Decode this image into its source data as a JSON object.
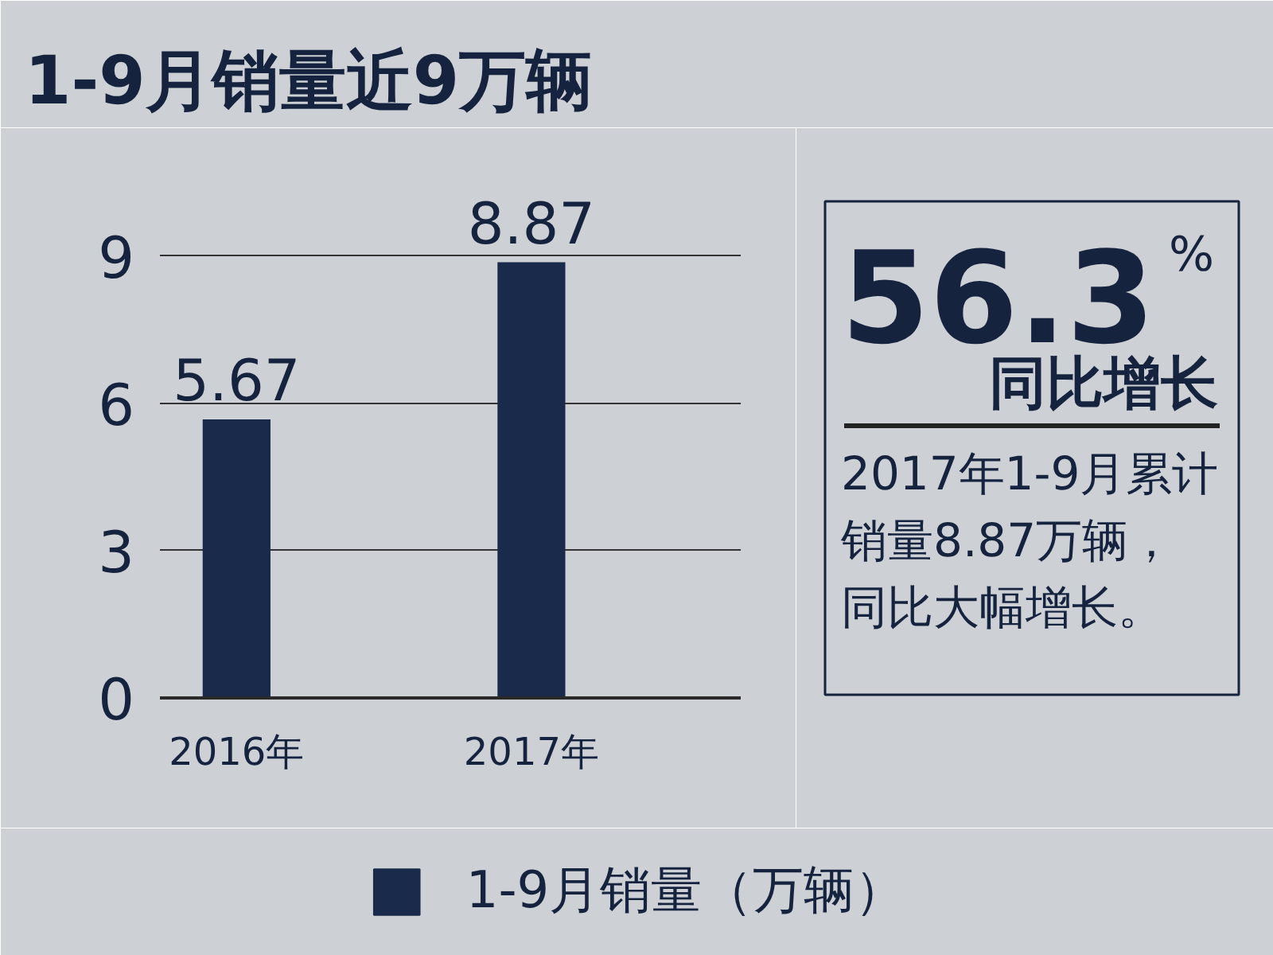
{
  "chart_data": {
    "type": "bar",
    "title": "1-9月销量近9万辆",
    "categories": [
      "2016年",
      "2017年"
    ],
    "series": [
      {
        "name": "1-9月销量（万辆）",
        "color": "#1a2a4b",
        "values": [
          5.67,
          8.87
        ]
      }
    ],
    "ylim": [
      0,
      10.5
    ],
    "yticks": [
      0,
      3,
      6,
      9
    ],
    "grid": "y",
    "legend": "bottom",
    "data_labels": true,
    "annotations": [
      "56.3$^{%}$",
      "同比增长",
      "2017年1-9月累计销量8.87万辆，同比大幅增长。"
    ]
  }
}
